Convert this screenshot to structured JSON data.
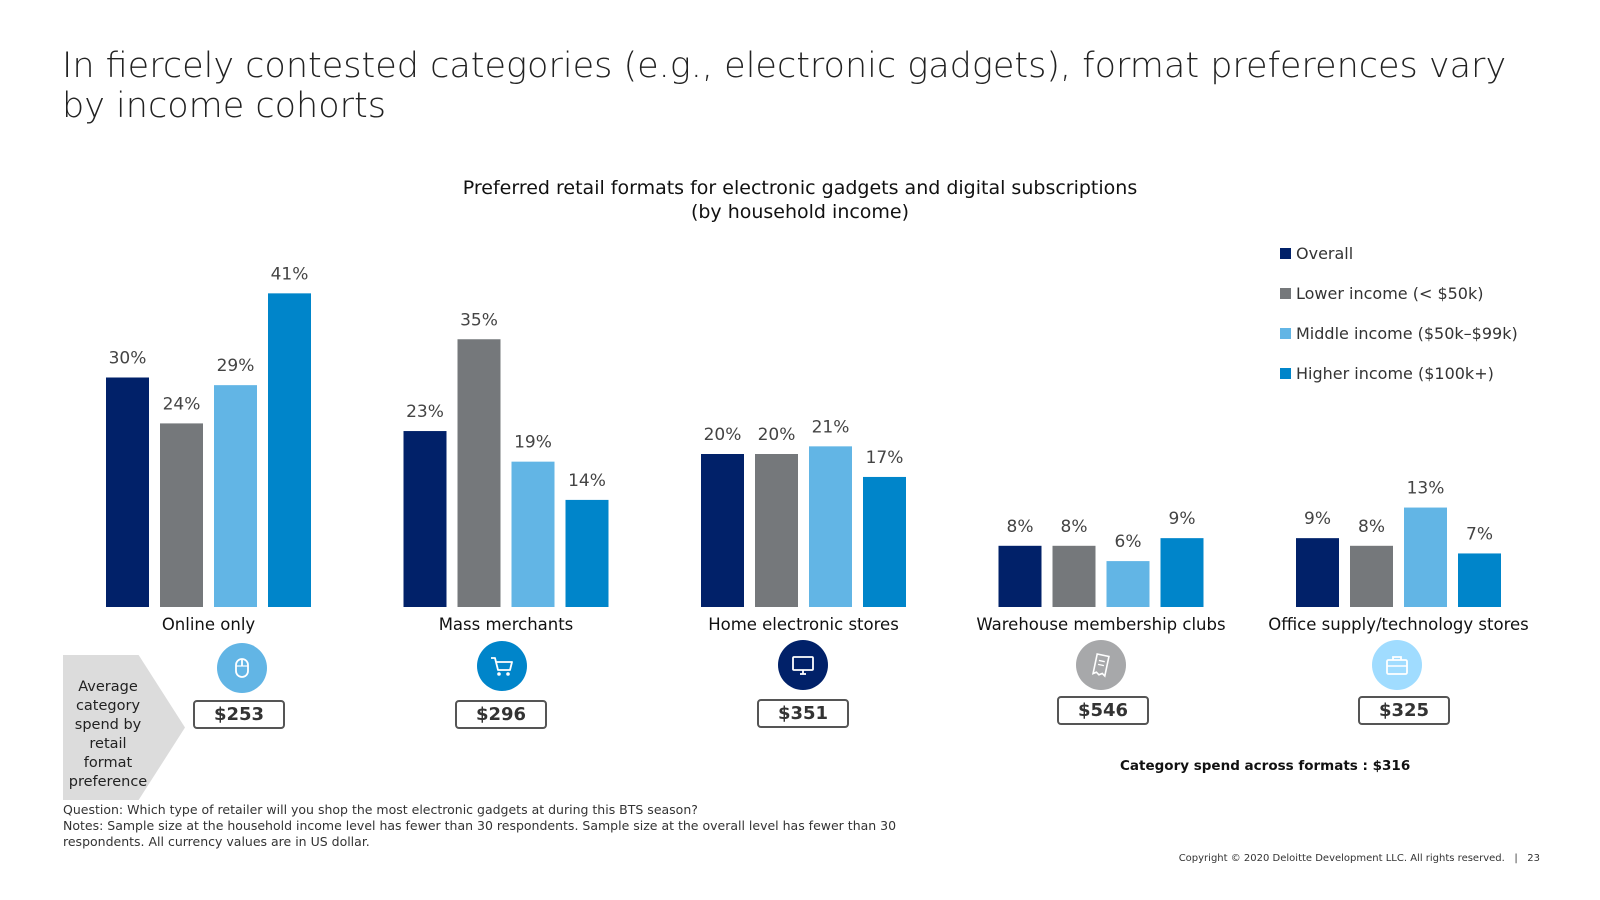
{
  "slide": {
    "title": "In fiercely contested categories (e.g., electronic gadgets), format preferences vary by income cohorts",
    "copyright": "Copyright © 2020 Deloitte Development LLC. All rights reserved.",
    "page_number": "23"
  },
  "chart_data": {
    "type": "bar",
    "title": "Preferred retail formats for electronic gadgets and digital subscriptions",
    "subtitle": "(by household income)",
    "categories": [
      "Online only",
      "Mass merchants",
      "Home electronic stores",
      "Warehouse membership clubs",
      "Office supply/technology stores"
    ],
    "series": [
      {
        "name": "Overall",
        "color": "#012169",
        "values": [
          30,
          23,
          20,
          8,
          9
        ]
      },
      {
        "name": "Lower income (< $50k)",
        "color": "#75787B",
        "values": [
          24,
          35,
          20,
          8,
          8
        ]
      },
      {
        "name": "Middle income ($50k–$99k)",
        "color": "#62B5E5",
        "values": [
          29,
          19,
          21,
          6,
          13
        ]
      },
      {
        "name": "Higher income ($100k+)",
        "color": "#0085CA",
        "values": [
          41,
          14,
          17,
          9,
          7
        ]
      }
    ],
    "value_suffix": "%",
    "ylim": [
      0,
      45
    ],
    "xlabel": "",
    "ylabel": "",
    "grid": false,
    "legend": "top-right"
  },
  "spend": {
    "label": "Average category spend by retail format preference",
    "values": [
      "$253",
      "$296",
      "$351",
      "$546",
      "$325"
    ],
    "icons": [
      "mouse-icon",
      "shopping-cart-icon",
      "monitor-icon",
      "receipt-icon",
      "briefcase-icon"
    ],
    "icon_colors": [
      "#62B5E5",
      "#0085CA",
      "#012169",
      "#A7A8AA",
      "#A0DCFF"
    ],
    "total_label": "Category spend across formats : $316"
  },
  "notes": {
    "question": "Question: Which type of retailer will you shop the most electronic gadgets at during this BTS season?",
    "text": "Notes: Sample size at the household income level has fewer than 30 respondents. Sample size at the overall level has fewer than 30 respondents. All currency values are in US dollar."
  }
}
